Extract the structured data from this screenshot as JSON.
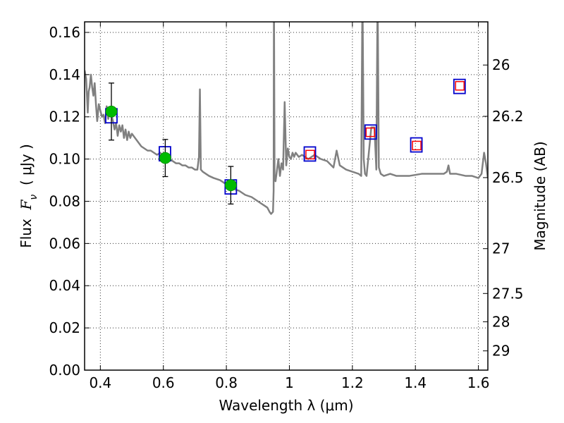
{
  "chart_data": {
    "type": "scatter",
    "xlabel": "Wavelength  λ (μm)",
    "ylabel": "Flux  F_ν  ( μJy )",
    "ylabel_parts": {
      "pre": "Flux  ",
      "F": "F",
      "sub": "ν",
      "post": "  ( μJy )"
    },
    "y2label": "Magnitude (AB)",
    "xlim": [
      0.35,
      1.63
    ],
    "ylim": [
      0.0,
      0.165
    ],
    "grid": true,
    "xticks": [
      {
        "value": 0.4,
        "label": "0.4"
      },
      {
        "value": 0.6,
        "label": "0.6"
      },
      {
        "value": 0.8,
        "label": "0.8"
      },
      {
        "value": 1.0,
        "label": "1"
      },
      {
        "value": 1.2,
        "label": "1.2"
      },
      {
        "value": 1.4,
        "label": "1.4"
      },
      {
        "value": 1.6,
        "label": "1.6"
      }
    ],
    "yticks": [
      {
        "value": 0.0,
        "label": "0.00"
      },
      {
        "value": 0.02,
        "label": "0.02"
      },
      {
        "value": 0.04,
        "label": "0.04"
      },
      {
        "value": 0.06,
        "label": "0.06"
      },
      {
        "value": 0.08,
        "label": "0.08"
      },
      {
        "value": 0.1,
        "label": "0.10"
      },
      {
        "value": 0.12,
        "label": "0.12"
      },
      {
        "value": 0.14,
        "label": "0.14"
      },
      {
        "value": 0.16,
        "label": "0.16"
      }
    ],
    "y2ticks": [
      {
        "mag": 26.0,
        "label": "26"
      },
      {
        "mag": 26.2,
        "label": "26.2"
      },
      {
        "mag": 26.5,
        "label": "26.5"
      },
      {
        "mag": 27.0,
        "label": "27"
      },
      {
        "mag": 27.5,
        "label": "27.5"
      },
      {
        "mag": 28.0,
        "label": "28"
      },
      {
        "mag": 29.0,
        "label": "29"
      }
    ],
    "sed_model": {
      "color": "#808080",
      "x": [
        0.35,
        0.355,
        0.36,
        0.363,
        0.366,
        0.37,
        0.374,
        0.378,
        0.382,
        0.386,
        0.39,
        0.395,
        0.4,
        0.405,
        0.41,
        0.415,
        0.42,
        0.425,
        0.43,
        0.435,
        0.44,
        0.445,
        0.45,
        0.455,
        0.46,
        0.465,
        0.47,
        0.475,
        0.48,
        0.485,
        0.49,
        0.495,
        0.5,
        0.51,
        0.52,
        0.53,
        0.54,
        0.55,
        0.56,
        0.57,
        0.58,
        0.59,
        0.6,
        0.61,
        0.62,
        0.63,
        0.64,
        0.65,
        0.66,
        0.67,
        0.68,
        0.69,
        0.7,
        0.708,
        0.713,
        0.716,
        0.719,
        0.725,
        0.735,
        0.745,
        0.76,
        0.78,
        0.8,
        0.82,
        0.84,
        0.86,
        0.88,
        0.9,
        0.91,
        0.92,
        0.93,
        0.937,
        0.942,
        0.948,
        0.95,
        0.951,
        0.953,
        0.956,
        0.96,
        0.965,
        0.97,
        0.975,
        0.98,
        0.985,
        0.99,
        0.995,
        1.0,
        1.005,
        1.01,
        1.015,
        1.02,
        1.03,
        1.04,
        1.06,
        1.08,
        1.1,
        1.12,
        1.14,
        1.15,
        1.16,
        1.18,
        1.2,
        1.22,
        1.228,
        1.232,
        1.236,
        1.24,
        1.245,
        1.26,
        1.27,
        1.276,
        1.28,
        1.284,
        1.29,
        1.3,
        1.32,
        1.34,
        1.38,
        1.42,
        1.46,
        1.49,
        1.5,
        1.505,
        1.51,
        1.515,
        1.53,
        1.56,
        1.58,
        1.6,
        1.61,
        1.618,
        1.624,
        1.63
      ],
      "y": [
        0.142,
        0.138,
        0.122,
        0.132,
        0.134,
        0.14,
        0.134,
        0.13,
        0.136,
        0.126,
        0.118,
        0.126,
        0.123,
        0.12,
        0.121,
        0.117,
        0.125,
        0.119,
        0.124,
        0.121,
        0.118,
        0.114,
        0.117,
        0.111,
        0.116,
        0.113,
        0.116,
        0.11,
        0.114,
        0.109,
        0.113,
        0.11,
        0.112,
        0.11,
        0.108,
        0.106,
        0.105,
        0.104,
        0.104,
        0.103,
        0.102,
        0.103,
        0.101,
        0.101,
        0.1,
        0.099,
        0.098,
        0.098,
        0.097,
        0.097,
        0.096,
        0.096,
        0.095,
        0.095,
        0.101,
        0.133,
        0.095,
        0.094,
        0.093,
        0.092,
        0.091,
        0.09,
        0.088,
        0.086,
        0.085,
        0.083,
        0.082,
        0.08,
        0.079,
        0.078,
        0.077,
        0.075,
        0.074,
        0.075,
        0.085,
        0.18,
        0.09,
        0.0895,
        0.094,
        0.1,
        0.092,
        0.098,
        0.095,
        0.127,
        0.097,
        0.105,
        0.101,
        0.1,
        0.103,
        0.101,
        0.103,
        0.101,
        0.102,
        0.1,
        0.102,
        0.1,
        0.099,
        0.096,
        0.104,
        0.097,
        0.095,
        0.094,
        0.093,
        0.092,
        0.18,
        0.1,
        0.093,
        0.092,
        0.115,
        0.115,
        0.095,
        0.18,
        0.096,
        0.093,
        0.092,
        0.093,
        0.092,
        0.092,
        0.093,
        0.093,
        0.093,
        0.094,
        0.097,
        0.093,
        0.093,
        0.093,
        0.092,
        0.092,
        0.091,
        0.093,
        0.103,
        0.098,
        0.091
      ]
    },
    "photometry_model_boxes": {
      "color": "#0000cc",
      "points": [
        {
          "x": 0.435,
          "y": 0.1205
        },
        {
          "x": 0.605,
          "y": 0.1025
        },
        {
          "x": 0.814,
          "y": 0.0868
        },
        {
          "x": 1.065,
          "y": 0.1024
        },
        {
          "x": 1.258,
          "y": 0.1128
        },
        {
          "x": 1.403,
          "y": 0.1067
        },
        {
          "x": 1.54,
          "y": 0.1344
        }
      ]
    },
    "measured_points": {
      "color": "#00bb00",
      "points": [
        {
          "x": 0.435,
          "y": 0.1225,
          "err": 0.0135
        },
        {
          "x": 0.606,
          "y": 0.1005,
          "err": 0.0088
        },
        {
          "x": 0.814,
          "y": 0.0876,
          "err": 0.0089
        }
      ]
    },
    "upper_limit_squares": {
      "color": "#ff0000",
      "points": [
        {
          "x": 1.066,
          "y": 0.1021
        },
        {
          "x": 1.257,
          "y": 0.1127
        },
        {
          "x": 1.404,
          "y": 0.1064
        },
        {
          "x": 1.541,
          "y": 0.1347
        }
      ]
    }
  }
}
